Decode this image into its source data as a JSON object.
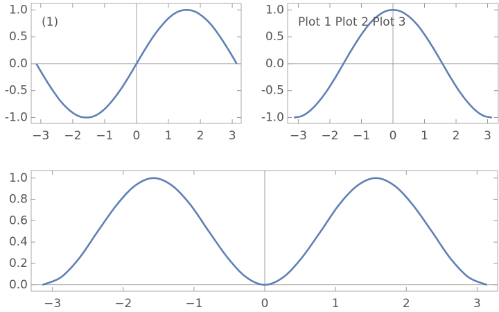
{
  "chart_data": [
    {
      "type": "line",
      "annotation": "(1)",
      "color": "#5e81b5",
      "x": [
        -3.14,
        -2.88,
        -2.62,
        -2.36,
        -2.09,
        -1.83,
        -1.57,
        -1.31,
        -1.05,
        -0.79,
        -0.52,
        -0.26,
        0,
        0.26,
        0.52,
        0.79,
        1.05,
        1.31,
        1.57,
        1.83,
        2.09,
        2.36,
        2.62,
        2.88,
        3.14
      ],
      "values": [
        0,
        -0.26,
        -0.5,
        -0.71,
        -0.87,
        -0.97,
        -1,
        -0.97,
        -0.87,
        -0.71,
        -0.5,
        -0.26,
        0,
        0.26,
        0.5,
        0.71,
        0.87,
        0.97,
        1,
        0.97,
        0.87,
        0.71,
        0.5,
        0.26,
        0
      ],
      "xlim": [
        -3.3,
        3.28
      ],
      "ylim": [
        -1.11,
        1.12
      ],
      "xticks": [
        {
          "value": -3,
          "label": "−3"
        },
        {
          "value": -2,
          "label": "−2"
        },
        {
          "value": -1,
          "label": "−1"
        },
        0,
        1,
        2,
        3
      ],
      "yticks": [
        {
          "value": -1,
          "label": "-1.0"
        },
        {
          "value": -0.5,
          "label": "-0.5"
        },
        {
          "value": 0,
          "label": "0.0"
        },
        0.5,
        {
          "value": 1,
          "label": "1.0"
        }
      ]
    },
    {
      "type": "line",
      "annotation": "Plot 1 Plot 2 Plot 3",
      "color": "#5e81b5",
      "x": [
        -3.14,
        -2.88,
        -2.62,
        -2.36,
        -2.09,
        -1.83,
        -1.57,
        -1.31,
        -1.05,
        -0.79,
        -0.52,
        -0.26,
        0,
        0.26,
        0.52,
        0.79,
        1.05,
        1.31,
        1.57,
        1.83,
        2.09,
        2.36,
        2.62,
        2.88,
        3.14
      ],
      "values": [
        -1,
        -0.97,
        -0.87,
        -0.71,
        -0.5,
        -0.26,
        0,
        0.26,
        0.5,
        0.71,
        0.87,
        0.97,
        1,
        0.97,
        0.87,
        0.71,
        0.5,
        0.26,
        0,
        -0.26,
        -0.5,
        -0.71,
        -0.87,
        -0.97,
        -1
      ],
      "xlim": [
        -3.34,
        3.34
      ],
      "ylim": [
        -1.11,
        1.12
      ],
      "xticks": [
        {
          "value": -3,
          "label": "−3"
        },
        {
          "value": -2,
          "label": "−2"
        },
        {
          "value": -1,
          "label": "−1"
        },
        0,
        1,
        2,
        3
      ],
      "yticks": [
        {
          "value": -1,
          "label": "-1.0"
        },
        {
          "value": -0.5,
          "label": "-0.5"
        },
        {
          "value": 0,
          "label": "0.0"
        },
        0.5,
        {
          "value": 1,
          "label": "1.0"
        }
      ]
    },
    {
      "type": "line",
      "color": "#5e81b5",
      "x": [
        -3.14,
        -2.88,
        -2.62,
        -2.36,
        -2.09,
        -1.83,
        -1.57,
        -1.31,
        -1.05,
        -0.79,
        -0.52,
        -0.26,
        0,
        0.26,
        0.52,
        0.79,
        1.05,
        1.31,
        1.57,
        1.83,
        2.09,
        2.36,
        2.62,
        2.88,
        3.14
      ],
      "values": [
        0,
        0.07,
        0.25,
        0.5,
        0.75,
        0.93,
        1,
        0.93,
        0.75,
        0.5,
        0.25,
        0.07,
        0,
        0.07,
        0.25,
        0.5,
        0.75,
        0.93,
        1,
        0.93,
        0.75,
        0.5,
        0.25,
        0.07,
        0
      ],
      "xlim": [
        -3.3,
        3.29
      ],
      "ylim": [
        -0.06,
        1.07
      ],
      "xticks": [
        {
          "value": -3,
          "label": "−3"
        },
        {
          "value": -2,
          "label": "−2"
        },
        {
          "value": -1,
          "label": "−1"
        },
        0,
        1,
        2,
        3
      ],
      "yticks": [
        {
          "value": 0,
          "label": "0.0"
        },
        0.2,
        0.4,
        0.6,
        0.8,
        {
          "value": 1,
          "label": "1.0"
        }
      ]
    }
  ]
}
